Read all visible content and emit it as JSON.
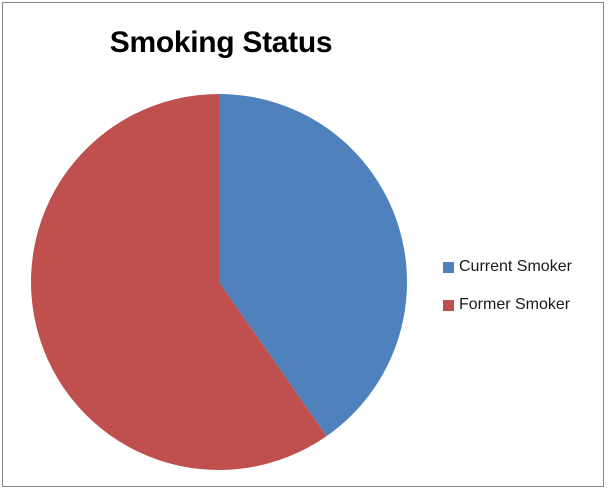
{
  "chart_data": {
    "type": "pie",
    "title": "Smoking Status",
    "slices": [
      {
        "name": "Current Smoker",
        "value": 40.3,
        "color": "#4F81BD"
      },
      {
        "name": "Former Smoker",
        "value": 59.7,
        "color": "#C0504D"
      }
    ],
    "legend_position": "right"
  }
}
